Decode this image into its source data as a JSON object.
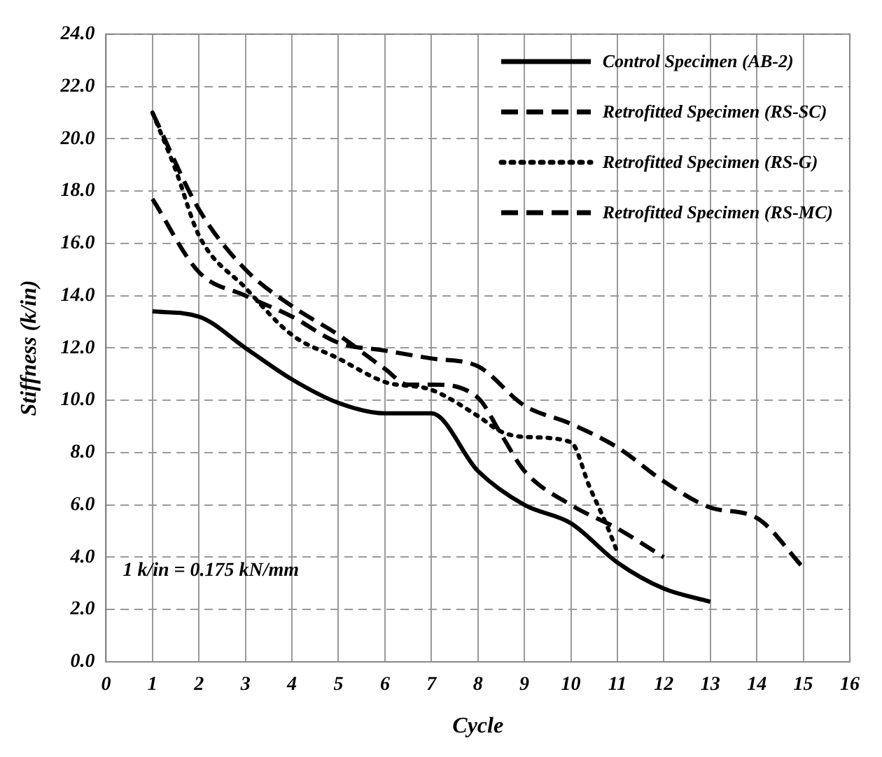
{
  "chart_data": {
    "type": "line",
    "xlabel": "Cycle",
    "ylabel": "Stiffness (k/in)",
    "xlim": [
      0,
      16
    ],
    "xticks": [
      0,
      1,
      2,
      3,
      4,
      5,
      6,
      7,
      8,
      9,
      10,
      11,
      12,
      13,
      14,
      15,
      16
    ],
    "ylim": [
      0,
      24
    ],
    "yticks": [
      {
        "value": 0,
        "label": "0.0"
      },
      {
        "value": 2,
        "label": "2.0"
      },
      {
        "value": 4,
        "label": "4.0"
      },
      {
        "value": 6,
        "label": "6.0"
      },
      {
        "value": 8,
        "label": "8.0"
      },
      {
        "value": 10,
        "label": "10.0"
      },
      {
        "value": 12,
        "label": "12.0"
      },
      {
        "value": 14,
        "label": "14.0"
      },
      {
        "value": 16,
        "label": "16.0"
      },
      {
        "value": 18,
        "label": "18.0"
      },
      {
        "value": 20,
        "label": "20.0"
      },
      {
        "value": 22,
        "label": "22.0"
      },
      {
        "value": 24,
        "label": "24.0"
      }
    ],
    "grid": true,
    "legend": "top right",
    "marker": "none",
    "annotations": [
      "1 k/in = 0.175 kN/mm"
    ],
    "series": [
      {
        "name": "Control Specimen (AB-2)",
        "color": "#000000",
        "line_style": "solid",
        "x": [
          1,
          2,
          3,
          4,
          5,
          6,
          7,
          8,
          9,
          10,
          11,
          12,
          13
        ],
        "values": [
          13.4,
          13.2,
          12.0,
          10.8,
          9.9,
          9.5,
          9.5,
          7.3,
          6.0,
          5.3,
          3.8,
          2.8,
          2.3
        ]
      },
      {
        "name": "Retrofitted Specimen (RS-SC)",
        "color": "#000000",
        "line_style": "dashed",
        "x": [
          1,
          2,
          3,
          4,
          5,
          6,
          7,
          8,
          9,
          10,
          11,
          12,
          13,
          14,
          15
        ],
        "values": [
          17.7,
          14.9,
          14.0,
          13.2,
          12.2,
          11.9,
          11.6,
          11.3,
          9.8,
          9.1,
          8.2,
          6.9,
          5.9,
          5.5,
          3.6
        ]
      },
      {
        "name": "Retrofitted Specimen (RS-G)",
        "color": "#000000",
        "line_style": "dotted",
        "x": [
          1,
          1.5,
          2,
          3,
          4,
          5,
          6,
          7,
          8,
          8.5,
          9,
          10,
          10.4,
          10.8,
          11
        ],
        "values": [
          21.0,
          18.8,
          16.3,
          14.3,
          12.5,
          11.6,
          10.7,
          10.4,
          9.4,
          8.8,
          8.6,
          8.4,
          6.7,
          5.1,
          4.2
        ]
      },
      {
        "name": "Retrofitted Specimen (RS-MC)",
        "color": "#000000",
        "line_style": "dashed",
        "x": [
          1,
          2,
          3,
          4,
          5,
          6,
          6.5,
          7,
          8,
          8.5,
          9,
          10,
          11,
          12
        ],
        "values": [
          21.0,
          17.3,
          15.0,
          13.6,
          12.5,
          11.2,
          10.6,
          10.6,
          10.1,
          8.7,
          7.3,
          6.0,
          5.1,
          4.0
        ]
      }
    ]
  }
}
